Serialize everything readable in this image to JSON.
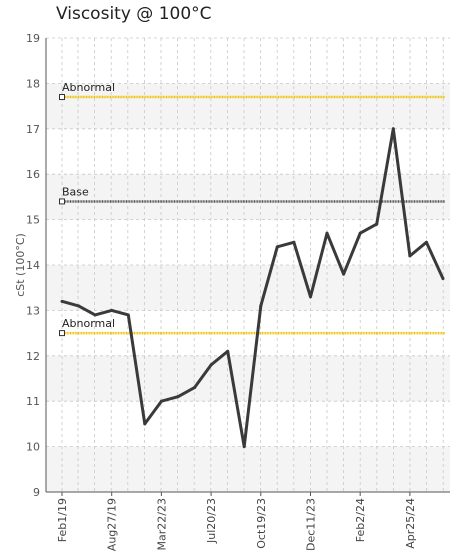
{
  "chart_data": {
    "type": "line",
    "title": "Viscosity @ 100°C",
    "xlabel": "",
    "ylabel": "cSt (100°C)",
    "ylim": [
      9,
      19
    ],
    "yticks": [
      9,
      10,
      11,
      12,
      13,
      14,
      15,
      16,
      17,
      18,
      19
    ],
    "grid": true,
    "x_tick_labels": [
      {
        "label": "Feb1/19",
        "index": 0
      },
      {
        "label": "Aug27/19",
        "index": 3
      },
      {
        "label": "Mar22/23",
        "index": 6
      },
      {
        "label": "Jul20/23",
        "index": 9
      },
      {
        "label": "Oct19/23",
        "index": 12
      },
      {
        "label": "Dec11/23",
        "index": 15
      },
      {
        "label": "Feb2/24",
        "index": 18
      },
      {
        "label": "Apr25/24",
        "index": 21
      }
    ],
    "series": [
      {
        "color": "#3a3a3a",
        "values": [
          13.2,
          13.1,
          12.9,
          13.0,
          12.9,
          10.5,
          11.0,
          11.1,
          11.3,
          11.8,
          12.1,
          10.0,
          13.1,
          14.4,
          14.5,
          13.3,
          14.7,
          13.8,
          14.7,
          14.9,
          17.0,
          14.2,
          14.5,
          13.7
        ]
      }
    ],
    "reference_lines": [
      {
        "label": "Abnormal",
        "value": 17.7,
        "color": "#f0c000"
      },
      {
        "label": "Base",
        "value": 15.4,
        "color": "#555555"
      },
      {
        "label": "Abnormal",
        "value": 12.5,
        "color": "#f0c000"
      }
    ]
  }
}
